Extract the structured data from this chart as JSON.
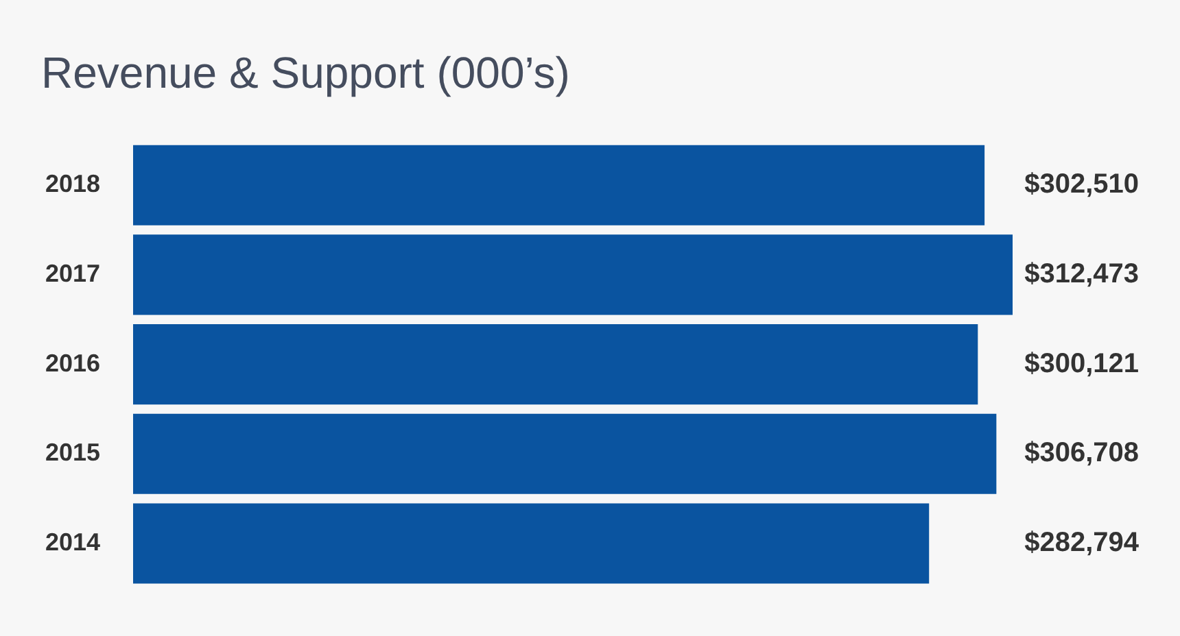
{
  "chart_data": {
    "type": "bar",
    "title": "Revenue & Support (000’s)",
    "orientation": "horizontal",
    "categories": [
      "2018",
      "2017",
      "2016",
      "2015",
      "2014"
    ],
    "values": [
      302510,
      312473,
      300121,
      306708,
      282794
    ],
    "color": "#0a54a0",
    "value_labels": [
      "$302,510",
      "$312,473",
      "$300,121",
      "$306,708",
      "$282,794"
    ],
    "tick_labels": "y"
  }
}
